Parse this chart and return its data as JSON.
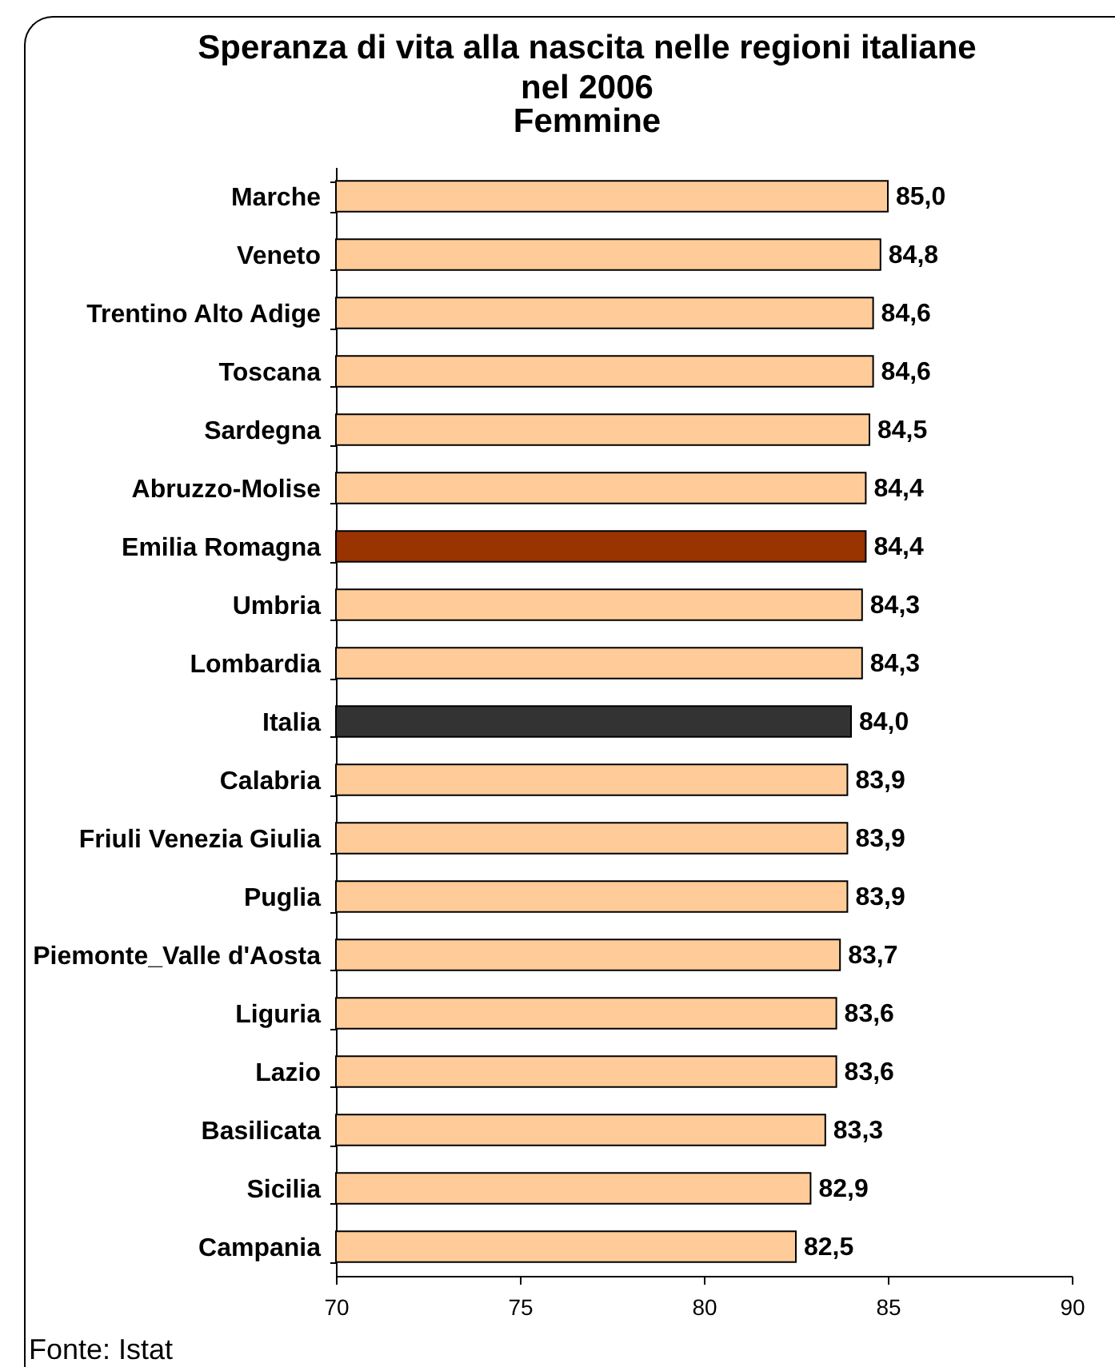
{
  "chart_data": {
    "type": "bar",
    "orientation": "horizontal",
    "title": "Speranza di vita alla nascita nelle regioni italiane nel 2006",
    "subtitle": "Femmine",
    "categories": [
      "Marche",
      "Veneto",
      "Trentino Alto Adige",
      "Toscana",
      "Sardegna",
      "Abruzzo-Molise",
      "Emilia Romagna",
      "Umbria",
      "Lombardia",
      "Italia",
      "Calabria",
      "Friuli Venezia Giulia",
      "Puglia",
      "Piemonte_Valle d'Aosta",
      "Liguria",
      "Lazio",
      "Basilicata",
      "Sicilia",
      "Campania"
    ],
    "values": [
      85.0,
      84.8,
      84.6,
      84.6,
      84.5,
      84.4,
      84.4,
      84.3,
      84.3,
      84.0,
      83.9,
      83.9,
      83.9,
      83.7,
      83.6,
      83.6,
      83.3,
      82.9,
      82.5
    ],
    "value_labels": [
      "85,0",
      "84,8",
      "84,6",
      "84,6",
      "84,5",
      "84,4",
      "84,4",
      "84,3",
      "84,3",
      "84,0",
      "83,9",
      "83,9",
      "83,9",
      "83,7",
      "83,6",
      "83,6",
      "83,3",
      "82,9",
      "82,5"
    ],
    "colors": [
      "#ffcc99",
      "#ffcc99",
      "#ffcc99",
      "#ffcc99",
      "#ffcc99",
      "#ffcc99",
      "#993300",
      "#ffcc99",
      "#ffcc99",
      "#333333",
      "#ffcc99",
      "#ffcc99",
      "#ffcc99",
      "#ffcc99",
      "#ffcc99",
      "#ffcc99",
      "#ffcc99",
      "#ffcc99",
      "#ffcc99"
    ],
    "xlim": [
      70,
      90
    ],
    "xticks": [
      70,
      75,
      80,
      85,
      90
    ],
    "annotations": [
      "Fonte: Istat"
    ]
  }
}
